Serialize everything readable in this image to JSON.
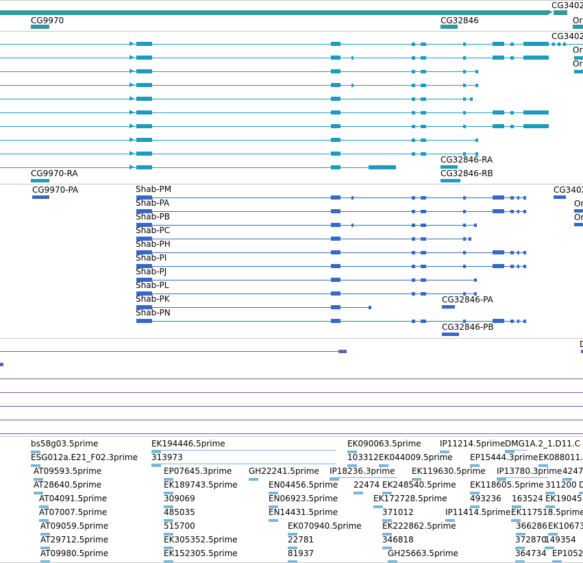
{
  "colors": {
    "gene_track": "#2e9c9c",
    "transcript_track": "#1b9bbf",
    "cds_track": "#3568c8",
    "third_track": "#7a58b0",
    "est_track": "#77b7d6",
    "divider": "#c8c8c8"
  },
  "gene_track": {
    "labels": [
      "CG3402",
      "CG9970",
      "CG32846",
      "Or"
    ]
  },
  "transcript_track": {
    "labels": [
      "CG3402",
      "Or",
      "Or",
      "CG9970-RA",
      "CG32846-RA",
      "CG32846-RB"
    ]
  },
  "cds_track": {
    "labels": [
      "CG9970-PA",
      "CG3402",
      "Or",
      "Or",
      "CG32846-PA",
      "CG32846-PB"
    ],
    "shab_labels": [
      "Shab-PM",
      "Shab-PA",
      "Shab-PB",
      "Shab-PC",
      "Shab-PH",
      "Shab-PI",
      "Shab-PJ",
      "Shab-PL",
      "Shab-PK",
      "Shab-PN"
    ]
  },
  "third_track": {
    "labels": [
      "D"
    ]
  },
  "est_track": {
    "labels": [
      "bs58g03.5prime",
      "EK194446.5prime",
      "EK090063.5prime",
      "IP11214.5prime",
      "DMG1A.2_1.D11.C",
      "ESG012a.E21_F02.3prime",
      "313973",
      "103312",
      "EK044009.5prime",
      "EP15444.3prime",
      "EK088011.",
      "AT09593.5prime",
      "EP07645.3prime",
      "GH22241.5prime",
      "IP18236.3prime",
      "EK119630.5prime",
      "IP13780.3prime",
      "4247",
      "AT28640.5prime",
      "EK189743.5prime",
      "EN04456.5prime",
      "22474",
      "EK248540.5prime",
      "EK118605.5prime",
      "311200",
      "D",
      "AT04091.5prime",
      "309069",
      "EN06923.5prime",
      "EK172728.5prime",
      "493236",
      "163524",
      "EK19045",
      "AT07007.5prime",
      "485035",
      "EN14431.5prime",
      "371012",
      "IP11414.5prime",
      "EK117518.5prime",
      "AT09059.5prime",
      "515700",
      "EK070940.5prime",
      "EK222862.5prime",
      "366286",
      "EK10673",
      "AT29712.5prime",
      "EK305352.5prime",
      "22781",
      "346818",
      "372870",
      "149354",
      "AT09980.5prime",
      "EK152305.5prime",
      "81937",
      "GH25663.5prime",
      "364734",
      "EP1052"
    ]
  }
}
